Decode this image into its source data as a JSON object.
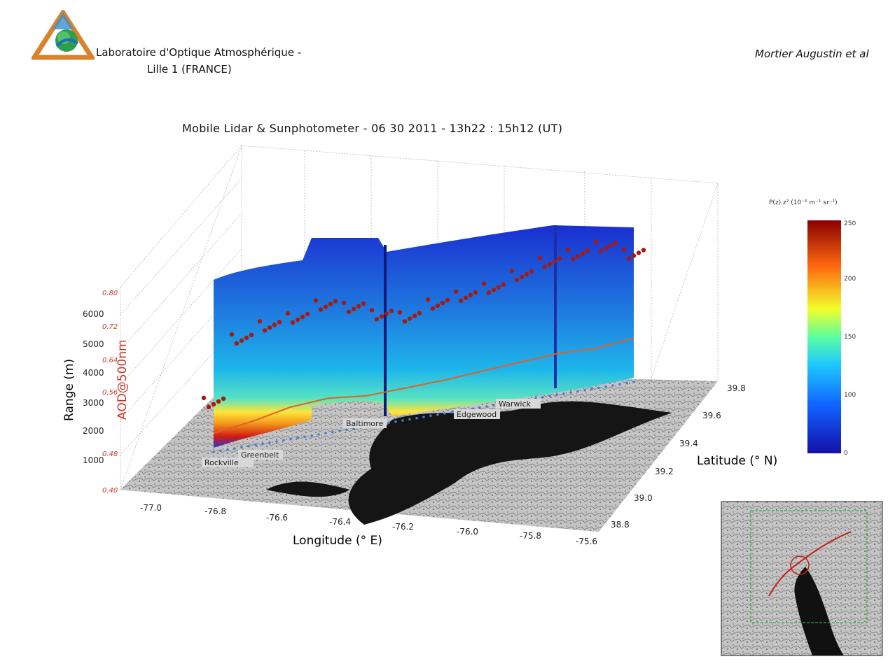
{
  "header": {
    "lab_line1": "Laboratoire d'Optique Atmosphérique -",
    "lab_line2": "Lille 1 (FRANCE)",
    "author": "Mortier Augustin et al"
  },
  "colors": {
    "low": "#1e2fd6",
    "mid": "#1fb3e6",
    "high": "#d9140f",
    "points": "#a31b12",
    "terrain": "#b9b9b9",
    "water": "#111111"
  },
  "chart_data": {
    "type": "3d-curtain",
    "title": "Mobile Lidar & Sunphotometer - 06 30 2011 - 13h22 : 15h12 (UT)",
    "xlabel": "Longitude (° E)",
    "ylabel": "Latitude (° N)",
    "zlabel": "Range (m)",
    "z2label": "AOD@500nm",
    "x_ticks": [
      "-77.0",
      "-76.8",
      "-76.6",
      "-76.4",
      "-76.2",
      "-76.0",
      "-75.8",
      "-75.6"
    ],
    "y_ticks": [
      "38.8",
      "39.0",
      "39.2",
      "39.4",
      "39.6",
      "39.8"
    ],
    "z_ticks": [
      "1000",
      "2000",
      "3000",
      "4000",
      "5000",
      "6000"
    ],
    "z2_ticks": [
      "0.40",
      "0.48",
      "0.56",
      "0.64",
      "0.72",
      "0.80"
    ],
    "colorbar": {
      "label": "P(z).z² (10⁻⁵ m⁻¹ sr⁻¹)",
      "ticks": [
        "0",
        "50",
        "100",
        "150",
        "200",
        "250"
      ],
      "range": [
        0,
        250
      ]
    },
    "cities": [
      "Rockville",
      "Greenbelt",
      "Baltimore",
      "Edgewood",
      "Warwick"
    ],
    "curtain_top_range": [
      5400,
      5600,
      6900,
      6900,
      6500,
      6300,
      6100,
      5900,
      6100,
      5800,
      7000,
      6700
    ],
    "boundary_layer_height": [
      1100,
      1500,
      2100,
      2300,
      2000,
      2100,
      2200,
      2400,
      2600,
      2800,
      2700,
      3000
    ],
    "aod_points": [
      0.57,
      0.69,
      0.71,
      0.72,
      0.74,
      0.73,
      0.71,
      0.7,
      0.72,
      0.73,
      0.74,
      0.76,
      0.78,
      0.79,
      0.8,
      0.78
    ]
  }
}
